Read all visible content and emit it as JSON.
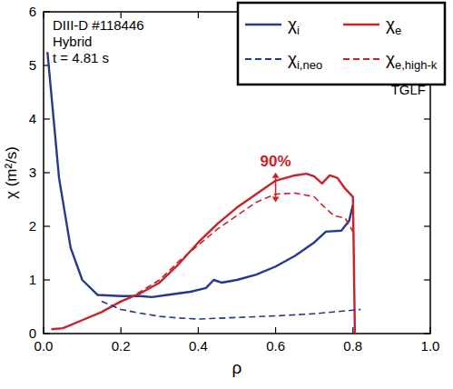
{
  "chart_data": {
    "type": "line",
    "x_label": "ρ",
    "y_label": "χ (m²/s)",
    "texts": [
      "DIII-D #118446",
      "Hybrid",
      "t = 4.81 s"
    ],
    "method": "TGLF",
    "annotations": [
      {
        "text": "90%",
        "x": 0.6
      }
    ],
    "legend": "upper right",
    "xlim": [
      0,
      1
    ],
    "ylim": [
      0,
      6
    ],
    "xticks": [
      {
        "value": 0,
        "label": "0.0"
      },
      {
        "value": 0.2,
        "label": "0.2"
      },
      {
        "value": 0.4,
        "label": "0.4"
      },
      {
        "value": 0.6,
        "label": "0.6"
      },
      {
        "value": 0.8,
        "label": "0.8"
      },
      {
        "value": 1,
        "label": "1.0"
      }
    ],
    "yticks": [
      0,
      1,
      2,
      3,
      4,
      5,
      6
    ],
    "grid": false,
    "series": [
      {
        "name": "χi",
        "color": "#24398f",
        "line_style": "solid",
        "x": [
          0.01,
          0.04,
          0.07,
          0.1,
          0.14,
          0.2,
          0.25,
          0.28,
          0.32,
          0.38,
          0.42,
          0.44,
          0.46,
          0.5,
          0.55,
          0.6,
          0.65,
          0.7,
          0.73,
          0.77,
          0.79,
          0.8
        ],
        "values": [
          5.25,
          2.9,
          1.6,
          1.0,
          0.72,
          0.7,
          0.7,
          0.68,
          0.72,
          0.78,
          0.85,
          1.0,
          0.95,
          1.0,
          1.1,
          1.25,
          1.45,
          1.7,
          1.9,
          1.92,
          2.1,
          2.4
        ]
      },
      {
        "name": "χe",
        "color": "#c8222a",
        "line_style": "solid",
        "x": [
          0.02,
          0.05,
          0.1,
          0.15,
          0.2,
          0.25,
          0.3,
          0.35,
          0.4,
          0.45,
          0.5,
          0.55,
          0.6,
          0.65,
          0.68,
          0.7,
          0.72,
          0.74,
          0.76,
          0.78,
          0.8,
          0.805
        ],
        "values": [
          0.08,
          0.1,
          0.25,
          0.4,
          0.6,
          0.75,
          0.95,
          1.3,
          1.7,
          2.05,
          2.35,
          2.6,
          2.85,
          2.95,
          2.98,
          2.93,
          2.8,
          2.95,
          2.9,
          2.7,
          2.55,
          0
        ]
      },
      {
        "name": "χi,neo",
        "color": "#24398f",
        "line_style": "dashed",
        "x": [
          0.15,
          0.2,
          0.25,
          0.3,
          0.35,
          0.4,
          0.5,
          0.6,
          0.7,
          0.82
        ],
        "values": [
          0.6,
          0.45,
          0.38,
          0.32,
          0.29,
          0.27,
          0.3,
          0.33,
          0.37,
          0.45
        ]
      },
      {
        "name": "χe,high-k",
        "color": "#c8222a",
        "line_style": "dashed",
        "x": [
          0.22,
          0.3,
          0.35,
          0.4,
          0.45,
          0.5,
          0.55,
          0.6,
          0.65,
          0.7,
          0.72,
          0.75,
          0.78,
          0.8
        ],
        "values": [
          0.65,
          1.0,
          1.35,
          1.65,
          1.95,
          2.2,
          2.45,
          2.6,
          2.62,
          2.55,
          2.4,
          2.2,
          2.15,
          1.9
        ]
      }
    ]
  }
}
